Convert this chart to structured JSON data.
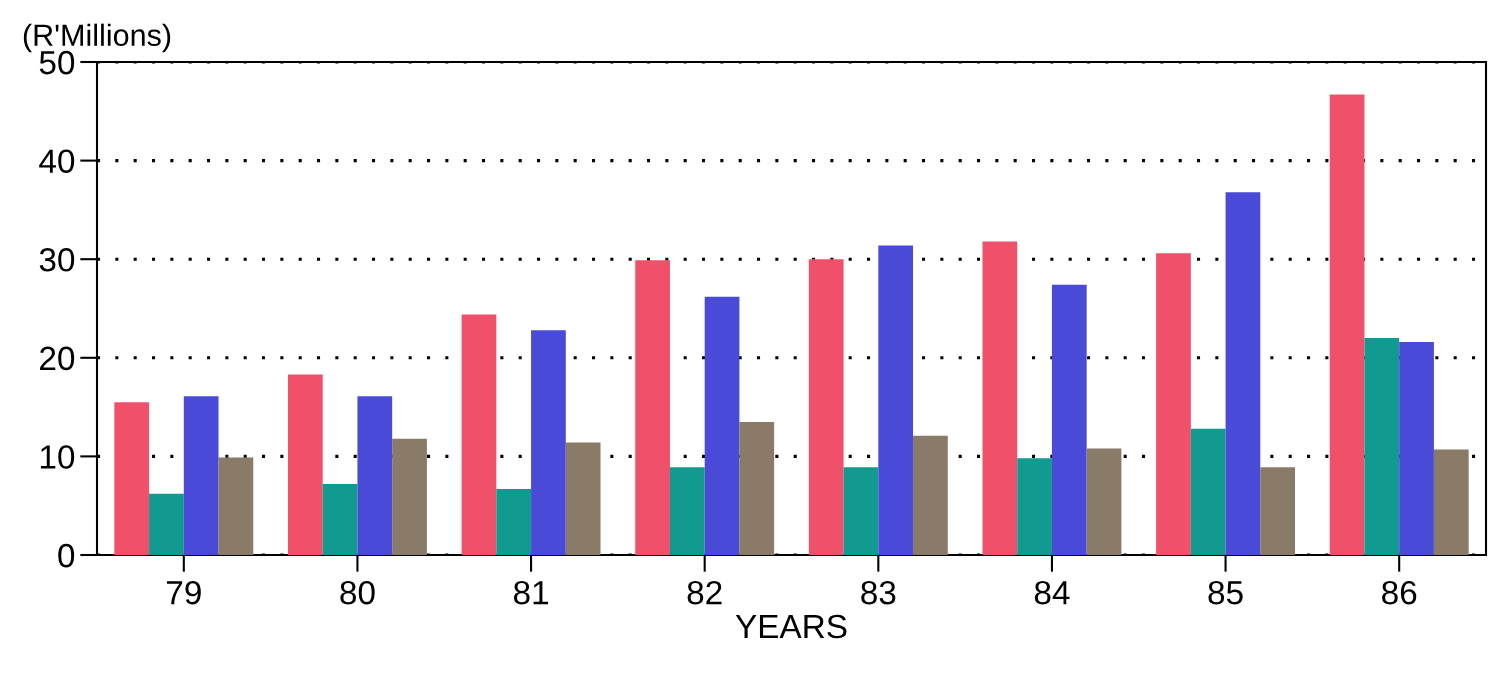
{
  "chart_data": {
    "type": "bar",
    "ylabel": "(R'Millions)",
    "xlabel": "YEARS",
    "categories": [
      "79",
      "80",
      "81",
      "82",
      "83",
      "84",
      "85",
      "86"
    ],
    "series": [
      {
        "color": "#f0506a",
        "values": [
          15.5,
          18.3,
          24.4,
          29.9,
          30.0,
          31.8,
          30.6,
          46.7
        ]
      },
      {
        "color": "#109a90",
        "values": [
          6.2,
          7.2,
          6.7,
          8.9,
          8.9,
          9.8,
          12.8,
          22.0
        ]
      },
      {
        "color": "#4a4ad8",
        "values": [
          16.1,
          16.1,
          22.8,
          26.2,
          31.4,
          27.4,
          36.8,
          21.6
        ]
      },
      {
        "color": "#8a7a68",
        "values": [
          9.9,
          11.8,
          11.4,
          13.5,
          12.1,
          10.8,
          8.9,
          10.7
        ]
      }
    ],
    "ylim": [
      0,
      50
    ],
    "yticks": [
      0,
      10,
      20,
      30,
      40,
      50
    ],
    "grid": "y",
    "line_style": "dotted"
  }
}
